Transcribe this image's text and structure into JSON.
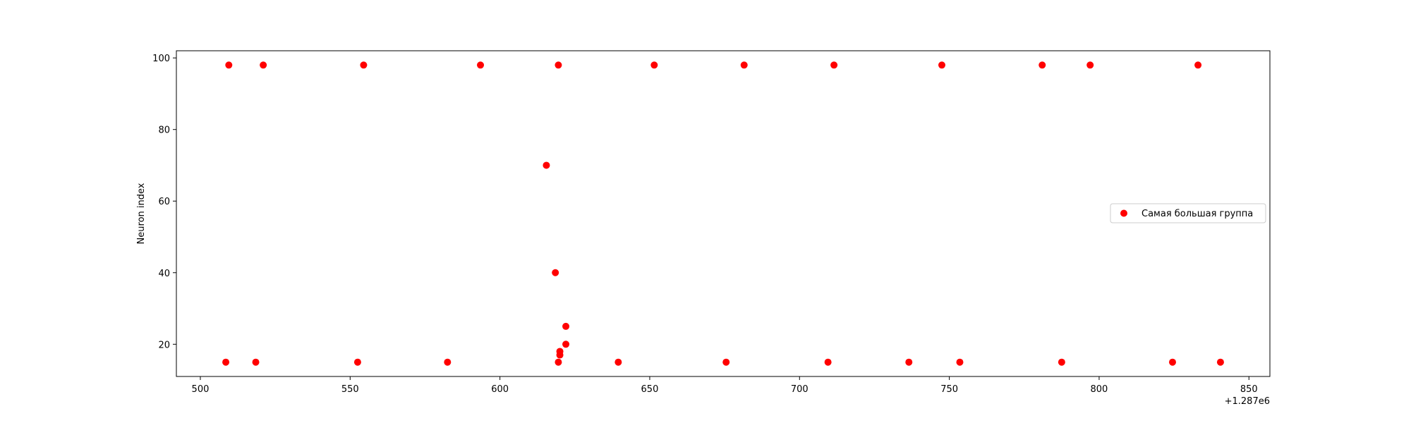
{
  "chart_data": {
    "type": "scatter",
    "title": "",
    "xlabel": "",
    "ylabel": "Neuron index",
    "x_offset_label": "+1.287e6",
    "xlim": [
      492,
      857
    ],
    "ylim": [
      11,
      102
    ],
    "x_ticks": [
      500,
      550,
      600,
      650,
      700,
      750,
      800,
      850
    ],
    "y_ticks": [
      20,
      40,
      60,
      80,
      100
    ],
    "grid": false,
    "legend_position": "center-right",
    "series": [
      {
        "name": "Самая большая группа",
        "color": "#ff0000",
        "points": [
          {
            "x": 509.5,
            "y": 98
          },
          {
            "x": 521,
            "y": 98
          },
          {
            "x": 554.5,
            "y": 98
          },
          {
            "x": 593.5,
            "y": 98
          },
          {
            "x": 619.5,
            "y": 98
          },
          {
            "x": 651.5,
            "y": 98
          },
          {
            "x": 681.5,
            "y": 98
          },
          {
            "x": 711.5,
            "y": 98
          },
          {
            "x": 747.5,
            "y": 98
          },
          {
            "x": 781,
            "y": 98
          },
          {
            "x": 797,
            "y": 98
          },
          {
            "x": 833,
            "y": 98
          },
          {
            "x": 615.5,
            "y": 70
          },
          {
            "x": 618.5,
            "y": 40
          },
          {
            "x": 622,
            "y": 25
          },
          {
            "x": 622,
            "y": 20
          },
          {
            "x": 620,
            "y": 18
          },
          {
            "x": 620,
            "y": 17
          },
          {
            "x": 508.5,
            "y": 15
          },
          {
            "x": 518.5,
            "y": 15
          },
          {
            "x": 552.5,
            "y": 15
          },
          {
            "x": 582.5,
            "y": 15
          },
          {
            "x": 619.5,
            "y": 15
          },
          {
            "x": 639.5,
            "y": 15
          },
          {
            "x": 675.5,
            "y": 15
          },
          {
            "x": 709.5,
            "y": 15
          },
          {
            "x": 736.5,
            "y": 15
          },
          {
            "x": 753.5,
            "y": 15
          },
          {
            "x": 787.5,
            "y": 15
          },
          {
            "x": 824.5,
            "y": 15
          },
          {
            "x": 840.5,
            "y": 15
          }
        ]
      }
    ]
  }
}
